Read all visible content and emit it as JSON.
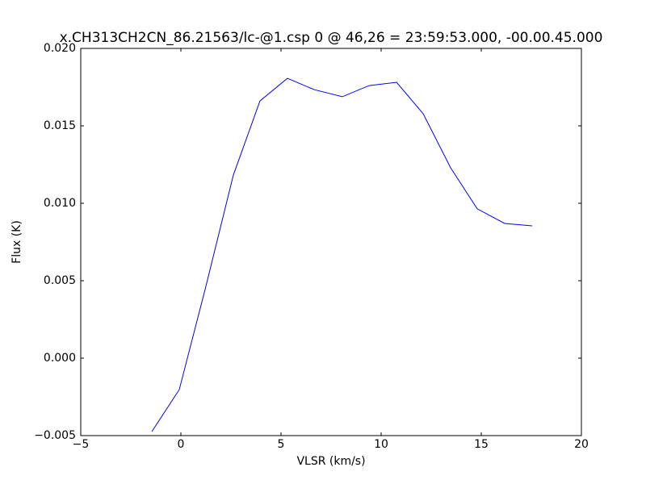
{
  "chart_data": {
    "type": "line",
    "title": "x.CH313CH2CN_86.21563/lc-@1.csp 0 @ 46,26 = 23:59:53.000, -00.00.45.000",
    "x_label": "VLSR (km/s)",
    "y_label": "Flux (K)",
    "x": [
      -1.45,
      -0.08,
      1.25,
      2.62,
      3.95,
      5.32,
      6.65,
      8.06,
      9.4,
      10.77,
      12.1,
      13.47,
      14.8,
      16.17,
      17.54
    ],
    "series": [
      {
        "color": "#0000ff",
        "values": [
          -0.00474,
          -0.00203,
          0.00464,
          0.01182,
          0.01661,
          0.01807,
          0.01734,
          0.01688,
          0.0176,
          0.01781,
          0.01578,
          0.01229,
          0.00964,
          0.0087,
          0.00854
        ]
      }
    ],
    "xlim": [
      -5,
      20
    ],
    "xticks": [
      {
        "value": -5,
        "label": "−5"
      },
      0,
      5,
      10,
      15,
      20
    ],
    "ylim": [
      -0.005,
      0.02
    ],
    "yticks": [
      {
        "value": -0.005,
        "label": "−0.005"
      },
      {
        "value": 0,
        "label": "0.000"
      },
      {
        "value": 0.005,
        "label": "0.005"
      },
      {
        "value": 0.01,
        "label": "0.010"
      },
      {
        "value": 0.015,
        "label": "0.015"
      },
      {
        "value": 0.02,
        "label": "0.020"
      }
    ],
    "grid": false
  }
}
